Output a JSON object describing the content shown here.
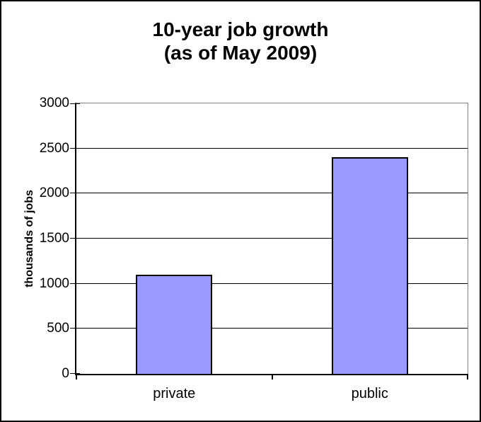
{
  "chart_data": {
    "type": "bar",
    "title": "10-year job growth (as of May 2009)",
    "title_lines": [
      "10-year job growth",
      "(as of May 2009)"
    ],
    "categories": [
      "private",
      "public"
    ],
    "values": [
      1100,
      2400
    ],
    "xlabel": "",
    "ylabel": "thousands of jobs",
    "ylim": [
      0,
      3000
    ],
    "yticks": [
      0,
      500,
      1000,
      1500,
      2000,
      2500,
      3000
    ],
    "ytick_interval": 500,
    "grid": "horizontal",
    "legend": "none",
    "colors": {
      "bar_fill": "#9999ff",
      "bar_border": "#000000",
      "gridline": "#000000",
      "axis": "#000000",
      "plot_border": "#848284",
      "text": "#000000",
      "background": "#ffffff",
      "outer_border": "#000000"
    }
  }
}
